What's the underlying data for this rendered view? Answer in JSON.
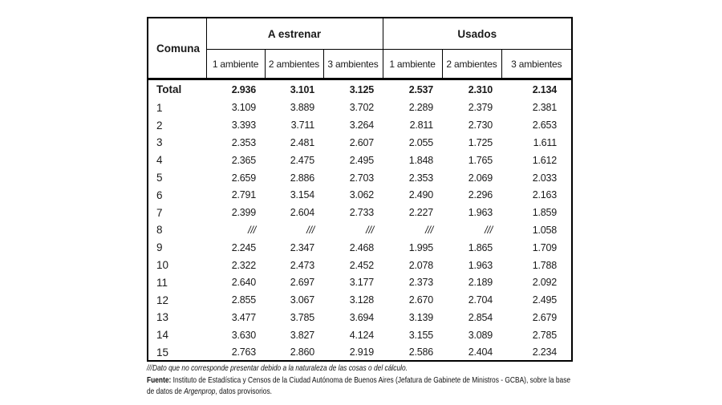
{
  "colors": {
    "background": "#ffffff",
    "border": "#000000",
    "text": "#1a1a1a"
  },
  "table": {
    "corner_label": "Comuna",
    "groups": [
      {
        "label": "A estrenar",
        "columns": [
          "1 ambiente",
          "2 ambientes",
          "3 ambientes"
        ]
      },
      {
        "label": "Usados",
        "columns": [
          "1 ambiente",
          "2 ambientes",
          "3 ambientes"
        ]
      }
    ],
    "no_data_symbol": "///",
    "rows": [
      {
        "label": "Total",
        "bold": true,
        "values": [
          "2.936",
          "3.101",
          "3.125",
          "2.537",
          "2.310",
          "2.134"
        ]
      },
      {
        "label": "1",
        "bold": false,
        "values": [
          "3.109",
          "3.889",
          "3.702",
          "2.289",
          "2.379",
          "2.381"
        ]
      },
      {
        "label": "2",
        "bold": false,
        "values": [
          "3.393",
          "3.711",
          "3.264",
          "2.811",
          "2.730",
          "2.653"
        ]
      },
      {
        "label": "3",
        "bold": false,
        "values": [
          "2.353",
          "2.481",
          "2.607",
          "2.055",
          "1.725",
          "1.611"
        ]
      },
      {
        "label": "4",
        "bold": false,
        "values": [
          "2.365",
          "2.475",
          "2.495",
          "1.848",
          "1.765",
          "1.612"
        ]
      },
      {
        "label": "5",
        "bold": false,
        "values": [
          "2.659",
          "2.886",
          "2.703",
          "2.353",
          "2.069",
          "2.033"
        ]
      },
      {
        "label": "6",
        "bold": false,
        "values": [
          "2.791",
          "3.154",
          "3.062",
          "2.490",
          "2.296",
          "2.163"
        ]
      },
      {
        "label": "7",
        "bold": false,
        "values": [
          "2.399",
          "2.604",
          "2.733",
          "2.227",
          "1.963",
          "1.859"
        ]
      },
      {
        "label": "8",
        "bold": false,
        "values": [
          "///",
          "///",
          "///",
          "///",
          "///",
          "1.058"
        ]
      },
      {
        "label": "9",
        "bold": false,
        "values": [
          "2.245",
          "2.347",
          "2.468",
          "1.995",
          "1.865",
          "1.709"
        ]
      },
      {
        "label": "10",
        "bold": false,
        "values": [
          "2.322",
          "2.473",
          "2.452",
          "2.078",
          "1.963",
          "1.788"
        ]
      },
      {
        "label": "11",
        "bold": false,
        "values": [
          "2.640",
          "2.697",
          "3.177",
          "2.373",
          "2.189",
          "2.092"
        ]
      },
      {
        "label": "12",
        "bold": false,
        "values": [
          "2.855",
          "3.067",
          "3.128",
          "2.670",
          "2.704",
          "2.495"
        ]
      },
      {
        "label": "13",
        "bold": false,
        "values": [
          "3.477",
          "3.785",
          "3.694",
          "3.139",
          "2.854",
          "2.679"
        ]
      },
      {
        "label": "14",
        "bold": false,
        "values": [
          "3.630",
          "3.827",
          "4.124",
          "3.155",
          "3.089",
          "2.785"
        ]
      },
      {
        "label": "15",
        "bold": false,
        "values": [
          "2.763",
          "2.860",
          "2.919",
          "2.586",
          "2.404",
          "2.234"
        ]
      }
    ]
  },
  "footnotes": {
    "note": "///Dato que no corresponde presentar debido a la naturaleza de las cosas o del cálculo.",
    "source_label": "Fuente:",
    "source_line1": " Instituto de Estadística y Censos de la Ciudad Autónoma de Buenos Aires (Jefatura de Gabinete de Ministros - GCBA), sobre la base",
    "source_line2_prefix": "de datos de ",
    "source_line2_italic": "Argenprop",
    "source_line2_suffix": ", datos provisorios."
  }
}
